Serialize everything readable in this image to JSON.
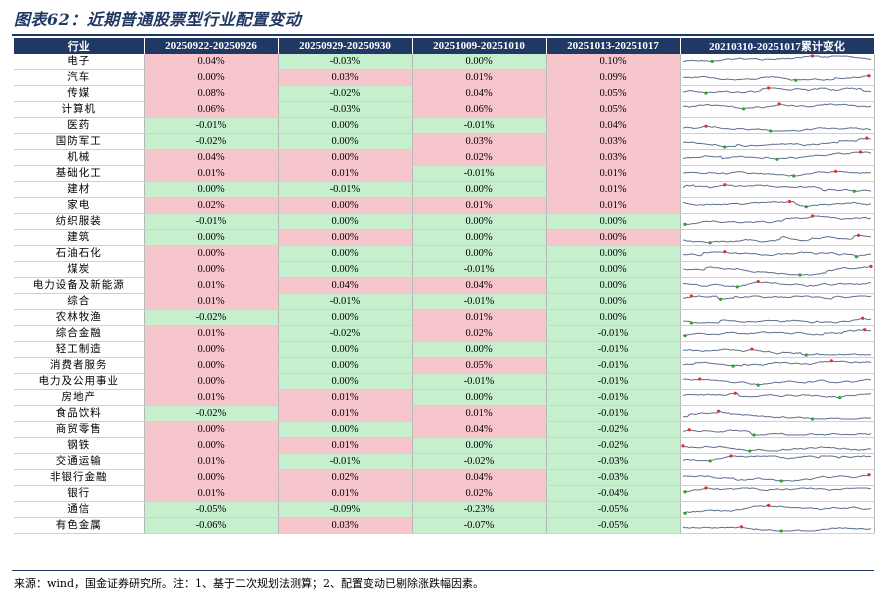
{
  "title": "图表62：近期普通股票型行业配置变动",
  "headers": [
    "行业",
    "20250922-20250926",
    "20250929-20250930",
    "20251009-20251010",
    "20251013-20251017",
    "20210310-20251017累计变化"
  ],
  "rows": [
    {
      "industry": "电子",
      "v": [
        "0.04%",
        "-0.03%",
        "0.00%",
        "0.10%"
      ]
    },
    {
      "industry": "汽车",
      "v": [
        "0.00%",
        "0.03%",
        "0.01%",
        "0.09%"
      ]
    },
    {
      "industry": "传媒",
      "v": [
        "0.08%",
        "-0.02%",
        "0.04%",
        "0.05%"
      ]
    },
    {
      "industry": "计算机",
      "v": [
        "0.06%",
        "-0.03%",
        "0.06%",
        "0.05%"
      ]
    },
    {
      "industry": "医药",
      "v": [
        "-0.01%",
        "0.00%",
        "-0.01%",
        "0.04%"
      ]
    },
    {
      "industry": "国防军工",
      "v": [
        "-0.02%",
        "0.00%",
        "0.03%",
        "0.03%"
      ]
    },
    {
      "industry": "机械",
      "v": [
        "0.04%",
        "0.00%",
        "0.02%",
        "0.03%"
      ]
    },
    {
      "industry": "基础化工",
      "v": [
        "0.01%",
        "0.01%",
        "-0.01%",
        "0.01%"
      ]
    },
    {
      "industry": "建材",
      "v": [
        "0.00%",
        "-0.01%",
        "0.00%",
        "0.01%"
      ]
    },
    {
      "industry": "家电",
      "v": [
        "0.02%",
        "0.00%",
        "0.01%",
        "0.01%"
      ]
    },
    {
      "industry": "纺织服装",
      "v": [
        "-0.01%",
        "0.00%",
        "0.00%",
        "0.00%"
      ]
    },
    {
      "industry": "建筑",
      "v": [
        "0.00%",
        "0.00%",
        "0.00%",
        "0.00%"
      ]
    },
    {
      "industry": "石油石化",
      "v": [
        "0.00%",
        "0.00%",
        "0.00%",
        "0.00%"
      ]
    },
    {
      "industry": "煤炭",
      "v": [
        "0.00%",
        "0.00%",
        "-0.01%",
        "0.00%"
      ]
    },
    {
      "industry": "电力设备及新能源",
      "v": [
        "0.01%",
        "0.04%",
        "0.04%",
        "0.00%"
      ]
    },
    {
      "industry": "综合",
      "v": [
        "0.01%",
        "-0.01%",
        "-0.01%",
        "0.00%"
      ]
    },
    {
      "industry": "农林牧渔",
      "v": [
        "-0.02%",
        "0.00%",
        "0.01%",
        "0.00%"
      ]
    },
    {
      "industry": "综合金融",
      "v": [
        "0.01%",
        "-0.02%",
        "0.02%",
        "-0.01%"
      ]
    },
    {
      "industry": "轻工制造",
      "v": [
        "0.00%",
        "0.00%",
        "0.00%",
        "-0.01%"
      ]
    },
    {
      "industry": "消费者服务",
      "v": [
        "0.00%",
        "0.00%",
        "0.05%",
        "-0.01%"
      ]
    },
    {
      "industry": "电力及公用事业",
      "v": [
        "0.00%",
        "0.00%",
        "-0.01%",
        "-0.01%"
      ]
    },
    {
      "industry": "房地产",
      "v": [
        "0.01%",
        "0.01%",
        "0.00%",
        "-0.01%"
      ]
    },
    {
      "industry": "食品饮料",
      "v": [
        "-0.02%",
        "0.01%",
        "0.01%",
        "-0.01%"
      ]
    },
    {
      "industry": "商贸零售",
      "v": [
        "0.00%",
        "0.00%",
        "0.04%",
        "-0.02%"
      ]
    },
    {
      "industry": "钢铁",
      "v": [
        "0.00%",
        "0.01%",
        "0.00%",
        "-0.02%"
      ]
    },
    {
      "industry": "交通运输",
      "v": [
        "0.01%",
        "-0.01%",
        "-0.02%",
        "-0.03%"
      ]
    },
    {
      "industry": "非银行金融",
      "v": [
        "0.00%",
        "0.02%",
        "0.04%",
        "-0.03%"
      ]
    },
    {
      "industry": "银行",
      "v": [
        "0.01%",
        "0.01%",
        "0.02%",
        "-0.04%"
      ]
    },
    {
      "industry": "通信",
      "v": [
        "-0.05%",
        "-0.09%",
        "-0.23%",
        "-0.05%"
      ]
    },
    {
      "industry": "有色金属",
      "v": [
        "-0.06%",
        "0.03%",
        "-0.07%",
        "-0.05%"
      ]
    }
  ],
  "colors": {
    "header_bg": "#1f3864",
    "positive_bg": "#f7c6cd",
    "negative_bg": "#c6efce",
    "sparkline": "#5b6f8f",
    "spark_max": "#e03030",
    "spark_min": "#30a030"
  },
  "source": "来源：wind，国金证券研究所。注：1、基于二次规划法测算；2、配置变动已剔除涨跌幅因素。"
}
